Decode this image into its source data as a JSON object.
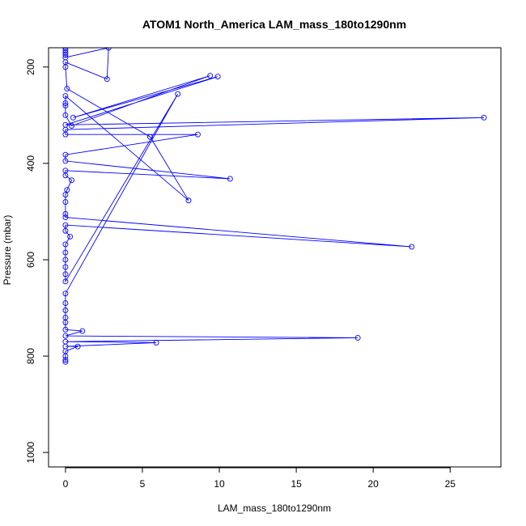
{
  "chart_data": {
    "type": "line",
    "title": "ATOM1 North_America LAM_mass_180to1290nm",
    "xlabel": "LAM_mass_180to1290nm",
    "ylabel": "Pressure (mbar)",
    "xlim": [
      -1.1,
      28.3
    ],
    "ylim": [
      1030,
      160
    ],
    "y_reversed": true,
    "xticks": [
      0,
      5,
      10,
      15,
      20,
      25
    ],
    "yticks": [
      200,
      400,
      600,
      800,
      1000
    ],
    "grid": false,
    "legend": "none",
    "color": "#0000ff",
    "series": [
      {
        "marker": "circle",
        "points": [
          [
            0.0,
            160
          ],
          [
            0.0,
            165
          ],
          [
            0.0,
            170
          ],
          [
            0.0,
            175
          ],
          [
            0.0,
            180
          ],
          [
            2.8,
            160
          ],
          [
            2.7,
            225
          ],
          [
            0.0,
            190
          ],
          [
            0.0,
            200
          ],
          [
            0.1,
            245
          ],
          [
            5.5,
            345
          ],
          [
            8.0,
            477
          ],
          [
            0.0,
            260
          ],
          [
            0.0,
            275
          ],
          [
            0.0,
            280
          ],
          [
            0.0,
            300
          ],
          [
            0.4,
            322
          ],
          [
            9.4,
            218
          ],
          [
            0.5,
            305
          ],
          [
            9.9,
            220
          ],
          [
            0.0,
            320
          ],
          [
            27.2,
            305
          ],
          [
            0.0,
            330
          ],
          [
            0.0,
            340
          ],
          [
            8.6,
            340
          ],
          [
            0.0,
            382
          ],
          [
            0.0,
            395
          ],
          [
            10.7,
            432
          ],
          [
            0.0,
            415
          ],
          [
            0.0,
            425
          ],
          [
            0.4,
            435
          ],
          [
            0.1,
            455
          ],
          [
            0.0,
            465
          ],
          [
            0.0,
            480
          ],
          [
            0.0,
            505
          ],
          [
            0.0,
            512
          ],
          [
            22.5,
            573
          ],
          [
            0.0,
            528
          ],
          [
            0.0,
            540
          ],
          [
            0.3,
            552
          ],
          [
            0.0,
            568
          ],
          [
            0.0,
            585
          ],
          [
            0.0,
            600
          ],
          [
            0.0,
            615
          ],
          [
            0.0,
            630
          ],
          [
            0.0,
            645
          ],
          [
            7.3,
            256
          ],
          [
            0.0,
            670
          ],
          [
            0.0,
            690
          ],
          [
            0.0,
            705
          ],
          [
            0.0,
            720
          ],
          [
            0.0,
            730
          ],
          [
            0.0,
            745
          ],
          [
            1.1,
            748
          ],
          [
            0.0,
            758
          ],
          [
            19.0,
            762
          ],
          [
            0.0,
            770
          ],
          [
            5.9,
            772
          ],
          [
            0.0,
            780
          ],
          [
            0.8,
            780
          ],
          [
            0.0,
            790
          ],
          [
            0.0,
            800
          ],
          [
            0.0,
            808
          ],
          [
            0.0,
            812
          ]
        ]
      }
    ]
  }
}
